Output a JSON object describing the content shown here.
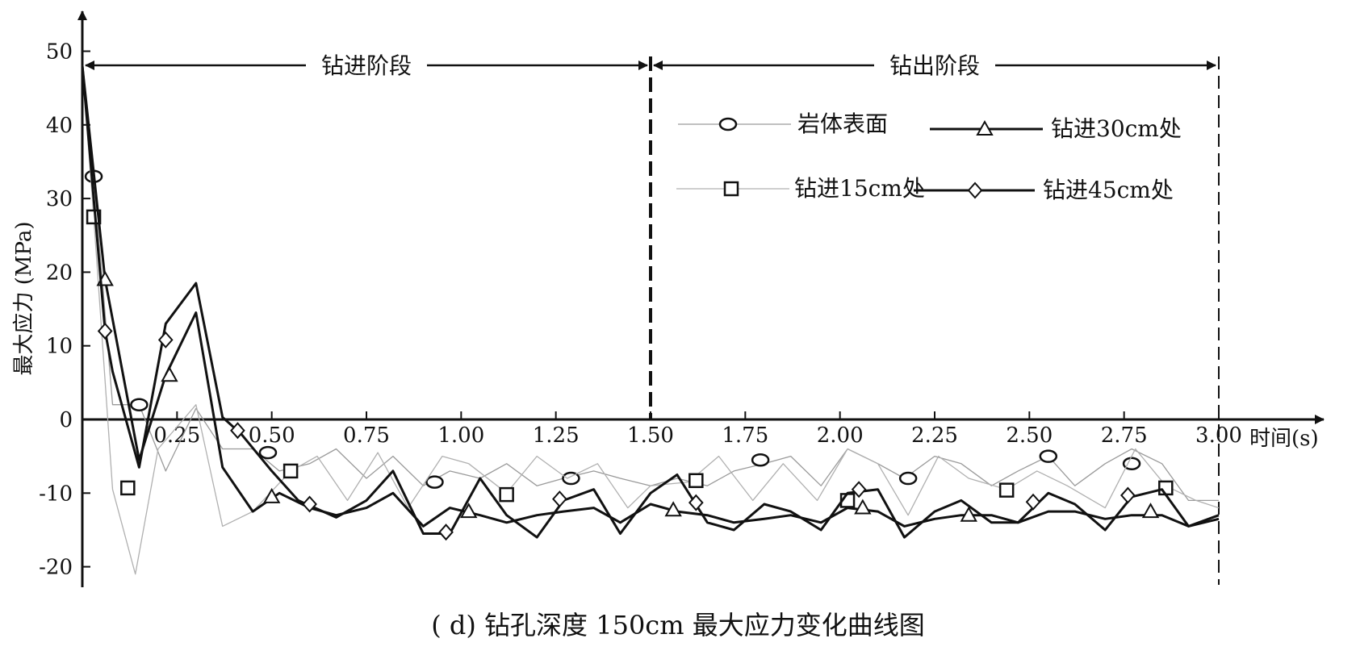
{
  "chart_data": {
    "type": "line",
    "ylabel": "最大应力 (MPa)",
    "xlabel": "时间(s)",
    "xlim": [
      0,
      3.0
    ],
    "ylim": [
      -22,
      50
    ],
    "xticks": [
      "0.25",
      "0.50",
      "0.75",
      "1.00",
      "1.25",
      "1.50",
      "1.75",
      "2.00",
      "2.25",
      "2.50",
      "2.75",
      "3.00"
    ],
    "yticks": [
      "50",
      "40",
      "30",
      "20",
      "10",
      "0",
      "-10",
      "-20"
    ],
    "stages": [
      {
        "label": "钻进阶段",
        "from": 0,
        "to": 1.5
      },
      {
        "label": "钻出阶段",
        "from": 1.5,
        "to": 3.0
      }
    ],
    "legend_placement": "upper-right",
    "series": [
      {
        "name": "岩体表面",
        "marker": "circle",
        "color": "#9a9a9a",
        "x": [
          0,
          0.03,
          0.08,
          0.15,
          0.22,
          0.3,
          0.37,
          0.45,
          0.52,
          0.6,
          0.67,
          0.75,
          0.82,
          0.9,
          0.97,
          1.05,
          1.12,
          1.2,
          1.27,
          1.35,
          1.42,
          1.5,
          1.57,
          1.65,
          1.72,
          1.8,
          1.87,
          1.95,
          2.02,
          2.1,
          2.17,
          2.25,
          2.32,
          2.4,
          2.47,
          2.55,
          2.62,
          2.7,
          2.77,
          2.85,
          2.92,
          3.0
        ],
        "y": [
          48,
          33,
          2,
          2,
          -7,
          1.5,
          -4,
          -4,
          -7,
          -6,
          -4,
          -8,
          -5,
          -9,
          -7,
          -8,
          -6,
          -9,
          -8,
          -7,
          -8,
          -9,
          -8,
          -9,
          -7,
          -6,
          -5,
          -9,
          -4,
          -6,
          -8,
          -5,
          -6,
          -9,
          -7,
          -5,
          -9,
          -6,
          -4,
          -6,
          -11,
          -11
        ],
        "markers_x": [
          0.03,
          0.15,
          0.49,
          0.93,
          1.29,
          1.79,
          2.18,
          2.55,
          2.77
        ],
        "markers_y": [
          33,
          2,
          -4.5,
          -8.5,
          -8,
          -5.5,
          -8,
          -5,
          -6
        ]
      },
      {
        "name": "钻进15cm处",
        "marker": "square",
        "color": "#b0b0b0",
        "x": [
          0,
          0.03,
          0.08,
          0.14,
          0.2,
          0.3,
          0.37,
          0.45,
          0.55,
          0.62,
          0.7,
          0.78,
          0.86,
          0.95,
          1.02,
          1.12,
          1.2,
          1.28,
          1.36,
          1.44,
          1.5,
          1.6,
          1.68,
          1.77,
          1.85,
          1.94,
          2.02,
          2.1,
          2.18,
          2.26,
          2.34,
          2.44,
          2.52,
          2.6,
          2.7,
          2.78,
          2.86,
          2.94,
          3.0
        ],
        "y": [
          48,
          27.5,
          -9.5,
          -21,
          -4,
          2,
          -14.5,
          -12.5,
          -7,
          -5,
          -11,
          -4.5,
          -12,
          -5,
          -6,
          -10,
          -5,
          -8,
          -6,
          -12,
          -9,
          -8.5,
          -5,
          -11,
          -6,
          -11,
          -4,
          -6,
          -13,
          -5,
          -8,
          -9.5,
          -7,
          -9,
          -12,
          -4,
          -9,
          -11,
          -12
        ],
        "markers_x": [
          0.03,
          0.12,
          0.55,
          1.12,
          1.62,
          2.02,
          2.44,
          2.86
        ],
        "markers_y": [
          27.5,
          -9.3,
          -7,
          -10.2,
          -8.3,
          -11,
          -9.6,
          -9.3
        ]
      },
      {
        "name": "钻进30cm处",
        "marker": "triangle",
        "color": "#111111",
        "x": [
          0,
          0.06,
          0.15,
          0.22,
          0.3,
          0.37,
          0.45,
          0.52,
          0.6,
          0.67,
          0.75,
          0.82,
          0.9,
          0.97,
          1.05,
          1.12,
          1.2,
          1.27,
          1.35,
          1.42,
          1.5,
          1.57,
          1.65,
          1.72,
          1.8,
          1.87,
          1.95,
          2.02,
          2.1,
          2.17,
          2.25,
          2.32,
          2.4,
          2.47,
          2.55,
          2.62,
          2.7,
          2.77,
          2.85,
          2.92,
          3.0
        ],
        "y": [
          48,
          19,
          -5.5,
          6,
          14.5,
          -6.5,
          -12.5,
          -10,
          -12,
          -13,
          -12,
          -10,
          -14.5,
          -12,
          -13,
          -14,
          -13,
          -12.5,
          -12,
          -14,
          -11.5,
          -12.5,
          -13,
          -14,
          -13.5,
          -13,
          -14,
          -12,
          -12.5,
          -14.5,
          -13.5,
          -13,
          -13,
          -14,
          -12.5,
          -12.5,
          -13.5,
          -13,
          -13,
          -14.5,
          -13.5
        ],
        "markers_x": [
          0.06,
          0.23,
          0.5,
          1.02,
          1.56,
          2.06,
          2.34,
          2.82
        ],
        "markers_y": [
          19,
          6,
          -10.5,
          -12.5,
          -12.3,
          -12,
          -13,
          -12.5
        ]
      },
      {
        "name": "钻进45cm处",
        "marker": "diamond",
        "color": "#111111",
        "x": [
          0,
          0.06,
          0.08,
          0.15,
          0.22,
          0.3,
          0.37,
          0.42,
          0.5,
          0.57,
          0.67,
          0.75,
          0.82,
          0.9,
          0.97,
          1.05,
          1.12,
          1.2,
          1.27,
          1.35,
          1.42,
          1.5,
          1.57,
          1.65,
          1.72,
          1.8,
          1.87,
          1.95,
          2.02,
          2.1,
          2.17,
          2.25,
          2.32,
          2.4,
          2.47,
          2.55,
          2.62,
          2.7,
          2.77,
          2.85,
          2.92,
          3.0
        ],
        "y": [
          48,
          12,
          6.5,
          -6.5,
          13,
          18.5,
          0.3,
          -2,
          -7,
          -11,
          -13.3,
          -11,
          -7,
          -15.5,
          -15.5,
          -8,
          -13,
          -16,
          -11,
          -9.5,
          -15.5,
          -10,
          -7.5,
          -14,
          -15,
          -11.5,
          -12.5,
          -15,
          -10,
          -9.5,
          -16,
          -12.5,
          -11,
          -14,
          -14,
          -10,
          -11.5,
          -15,
          -10.5,
          -9.5,
          -14.5,
          -13
        ],
        "markers_x": [
          0.06,
          0.22,
          0.41,
          0.6,
          0.96,
          1.26,
          1.62,
          2.05,
          2.51,
          2.76
        ],
        "markers_y": [
          12,
          10.8,
          -1.5,
          -11.5,
          -15.3,
          -10.8,
          -11.3,
          -9.5,
          -11.2,
          -10.3
        ]
      }
    ],
    "caption": "( d)   钻孔深度 150cm 最大应力变化曲线图"
  }
}
